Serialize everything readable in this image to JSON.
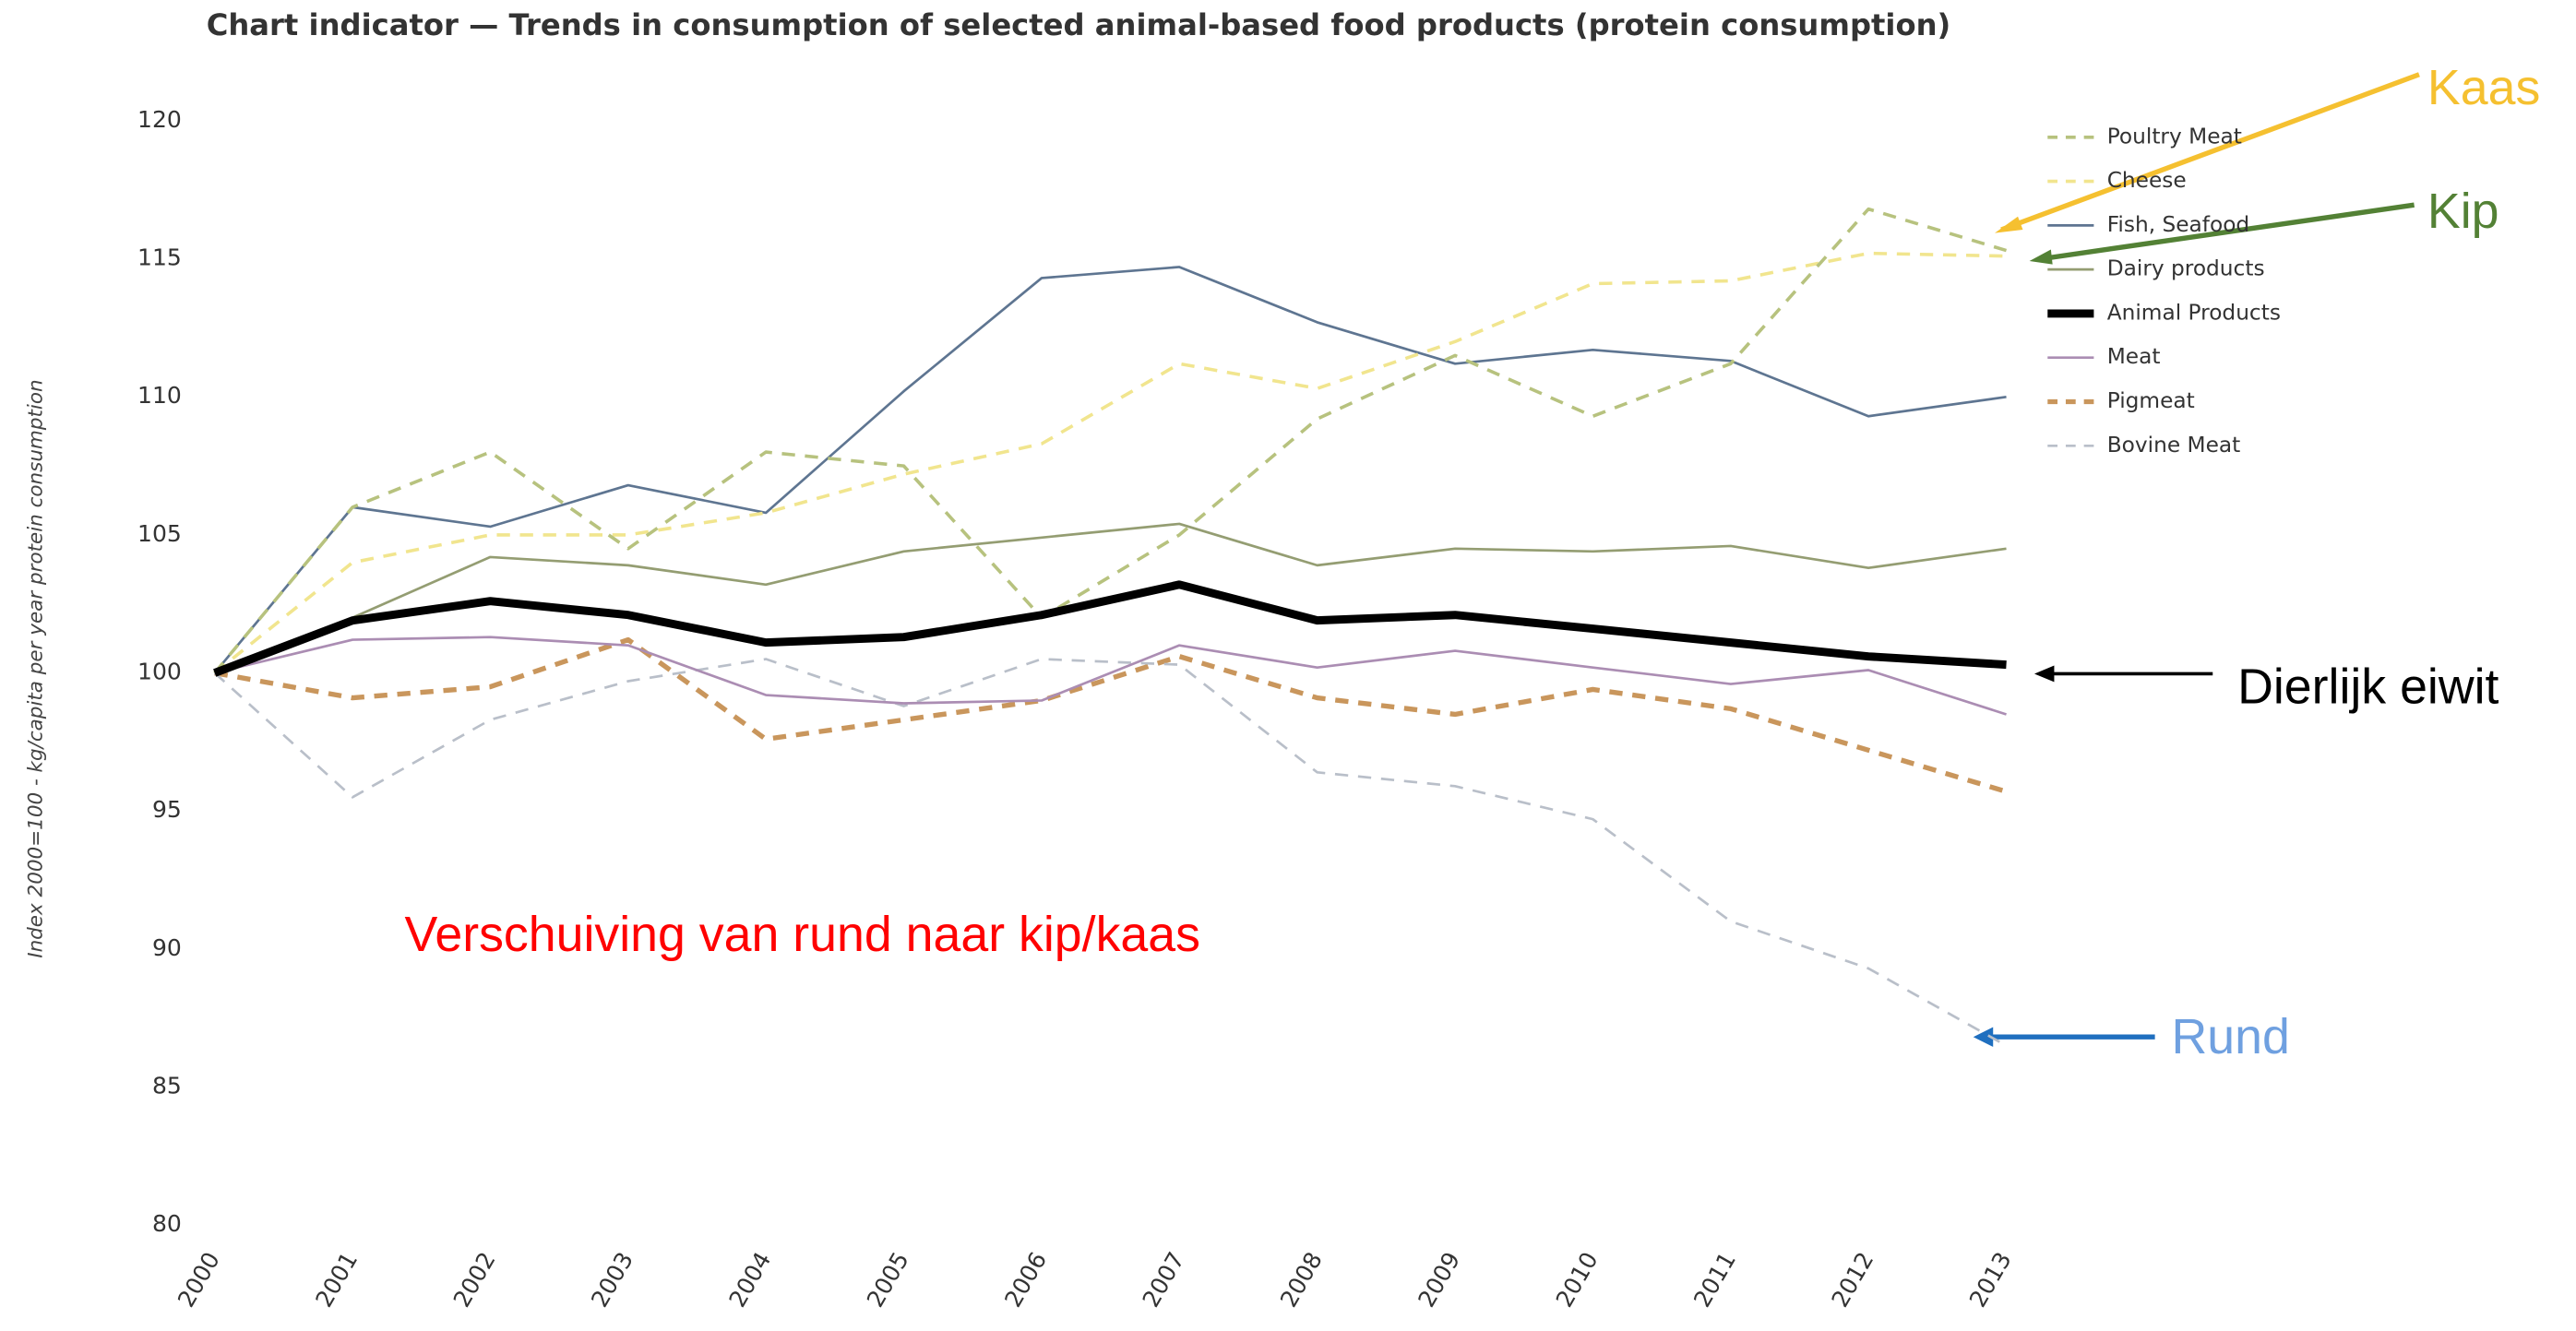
{
  "chart_data": {
    "type": "line",
    "title": "Chart indicator — Trends in consumption of selected animal-based food products (protein consumption)",
    "ylabel": "Index 2000=100 - kg/capita per year protein consumption",
    "categories": [
      "2000",
      "2001",
      "2002",
      "2003",
      "2004",
      "2005",
      "2006",
      "2007",
      "2008",
      "2009",
      "2010",
      "2011",
      "2012",
      "2013"
    ],
    "ylim": [
      80,
      120
    ],
    "yticks": [
      80,
      85,
      90,
      95,
      100,
      105,
      110,
      115,
      120
    ],
    "legend": "upper right",
    "series": [
      {
        "name": "Poultry Meat",
        "color": "#b7c27e",
        "dash": true,
        "width": 2,
        "values": [
          100,
          106,
          108,
          104.5,
          108,
          107.5,
          102,
          105,
          109.2,
          111.5,
          109.3,
          111.2,
          116.8,
          115.3
        ]
      },
      {
        "name": "Cheese",
        "color": "#f1e58e",
        "dash": true,
        "width": 2,
        "values": [
          100,
          104,
          105,
          105,
          105.8,
          107.2,
          108.3,
          111.2,
          110.3,
          112,
          114.1,
          114.2,
          115.2,
          115.1
        ]
      },
      {
        "name": "Fish, Seafood",
        "color": "#5e7591",
        "dash": false,
        "width": 1.5,
        "values": [
          100,
          106,
          105.3,
          106.8,
          105.8,
          110.2,
          114.3,
          114.7,
          112.7,
          111.2,
          111.7,
          111.3,
          109.3,
          110
        ]
      },
      {
        "name": "Dairy products",
        "color": "#949d72",
        "dash": false,
        "width": 1.5,
        "values": [
          100,
          102,
          104.2,
          103.9,
          103.2,
          104.4,
          104.9,
          105.4,
          103.9,
          104.5,
          104.4,
          104.6,
          103.8,
          104.5
        ]
      },
      {
        "name": "Animal Products",
        "color": "#000000",
        "dash": false,
        "width": 5,
        "values": [
          100,
          101.9,
          102.6,
          102.1,
          101.1,
          101.3,
          102.1,
          103.2,
          101.9,
          102.1,
          101.6,
          101.1,
          100.6,
          100.3
        ]
      },
      {
        "name": "Meat",
        "color": "#ab8db3",
        "dash": false,
        "width": 1.5,
        "values": [
          100,
          101.2,
          101.3,
          101,
          99.2,
          98.9,
          99,
          101,
          100.2,
          100.8,
          100.2,
          99.6,
          100.1,
          98.5
        ]
      },
      {
        "name": "Pigmeat",
        "color": "#c9965c",
        "dash": true,
        "width": 3,
        "values": [
          100,
          99.1,
          99.5,
          101.2,
          97.6,
          98.3,
          99,
          100.6,
          99.1,
          98.5,
          99.4,
          98.7,
          97.2,
          95.7
        ]
      },
      {
        "name": "Bovine Meat",
        "color": "#b9bfc9",
        "dash": true,
        "width": 1.5,
        "values": [
          100,
          95.5,
          98.3,
          99.7,
          100.5,
          98.8,
          100.5,
          100.3,
          96.4,
          95.9,
          94.7,
          91,
          89.3,
          86.5
        ]
      }
    ],
    "annotations": [
      {
        "text": "Kaas",
        "color": "#f5c030"
      },
      {
        "text": "Kip",
        "color": "#538135"
      },
      {
        "text": "Dierlijk eiwit",
        "color": "#000000"
      },
      {
        "text": "Rund",
        "color": "#6fa0e0"
      },
      {
        "text": "Verschuiving van rund naar kip/kaas",
        "color": "#ff0000"
      }
    ]
  }
}
